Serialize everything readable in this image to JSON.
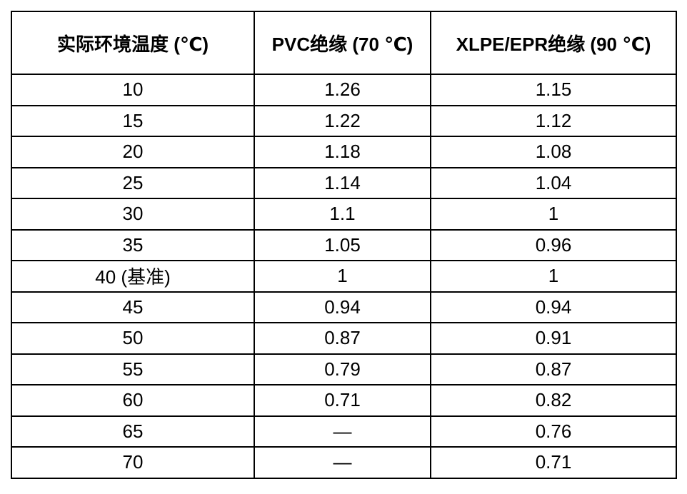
{
  "chart_data": {
    "type": "table",
    "columns": [
      "实际环境温度 (℃)",
      "PVC绝缘 (70 ℃)",
      "XLPE/EPR绝缘 (90 ℃)"
    ],
    "rows": [
      [
        "10",
        "1.26",
        "1.15"
      ],
      [
        "15",
        "1.22",
        "1.12"
      ],
      [
        "20",
        "1.18",
        "1.08"
      ],
      [
        "25",
        "1.14",
        "1.04"
      ],
      [
        "30",
        "1.1",
        "1"
      ],
      [
        "35",
        "1.05",
        "0.96"
      ],
      [
        "40 (基准)",
        "1",
        "1"
      ],
      [
        "45",
        "0.94",
        "0.94"
      ],
      [
        "50",
        "0.87",
        "0.91"
      ],
      [
        "55",
        "0.79",
        "0.87"
      ],
      [
        "60",
        "0.71",
        "0.82"
      ],
      [
        "65",
        "—",
        "0.76"
      ],
      [
        "70",
        "—",
        "0.71"
      ]
    ]
  },
  "colors": {
    "border": "#000000",
    "text": "#000000",
    "background": "#ffffff"
  }
}
